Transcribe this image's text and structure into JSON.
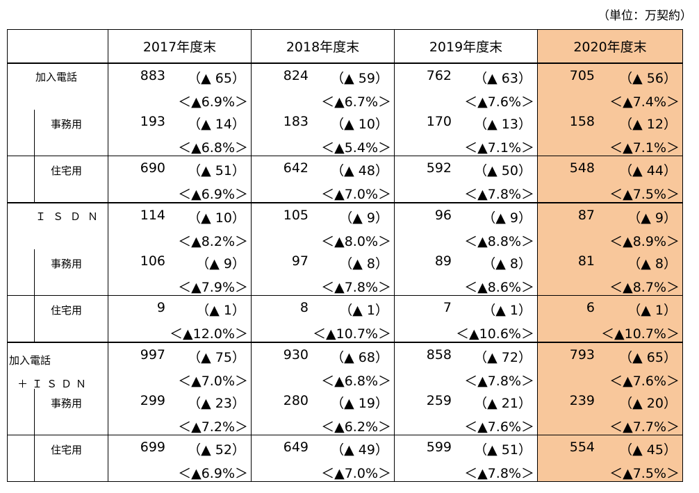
{
  "unit_label": "（単位：万契約）",
  "years": [
    "2017年度末",
    "2018年度末",
    "2019年度末",
    "2020年度末"
  ],
  "highlight_color": "#f8c79b",
  "rows": [
    {
      "label": "加入電話",
      "cells": [
        {
          "num": "883",
          "chg": "（▲ 65）",
          "pct": "＜▲6.9%＞"
        },
        {
          "num": "824",
          "chg": "（▲ 59）",
          "pct": "＜▲6.7%＞"
        },
        {
          "num": "762",
          "chg": "（▲ 63）",
          "pct": "＜▲7.6%＞"
        },
        {
          "num": "705",
          "chg": "（▲ 56）",
          "pct": "＜▲7.4%＞"
        }
      ]
    },
    {
      "label": "事務用",
      "cells": [
        {
          "num": "193",
          "chg": "（▲ 14）",
          "pct": "＜▲6.8%＞"
        },
        {
          "num": "183",
          "chg": "（▲ 10）",
          "pct": "＜▲5.4%＞"
        },
        {
          "num": "170",
          "chg": "（▲ 13）",
          "pct": "＜▲7.1%＞"
        },
        {
          "num": "158",
          "chg": "（▲ 12）",
          "pct": "＜▲7.1%＞"
        }
      ]
    },
    {
      "label": "住宅用",
      "cells": [
        {
          "num": "690",
          "chg": "（▲ 51）",
          "pct": "＜▲6.9%＞"
        },
        {
          "num": "642",
          "chg": "（▲ 48）",
          "pct": "＜▲7.0%＞"
        },
        {
          "num": "592",
          "chg": "（▲ 50）",
          "pct": "＜▲7.8%＞"
        },
        {
          "num": "548",
          "chg": "（▲ 44）",
          "pct": "＜▲7.5%＞"
        }
      ]
    },
    {
      "label": "ＩＳＤＮ",
      "cells": [
        {
          "num": "114",
          "chg": "（▲ 10）",
          "pct": "＜▲8.2%＞"
        },
        {
          "num": "105",
          "chg": "（▲ 9）",
          "pct": "＜▲8.0%＞"
        },
        {
          "num": "96",
          "chg": "（▲ 9）",
          "pct": "＜▲8.8%＞"
        },
        {
          "num": "87",
          "chg": "（▲ 9）",
          "pct": "＜▲8.9%＞"
        }
      ]
    },
    {
      "label": "事務用",
      "cells": [
        {
          "num": "106",
          "chg": "（▲ 9）",
          "pct": "＜▲7.9%＞"
        },
        {
          "num": "97",
          "chg": "（▲ 8）",
          "pct": "＜▲7.8%＞"
        },
        {
          "num": "89",
          "chg": "（▲ 8）",
          "pct": "＜▲8.6%＞"
        },
        {
          "num": "81",
          "chg": "（▲ 8）",
          "pct": "＜▲8.7%＞"
        }
      ]
    },
    {
      "label": "住宅用",
      "cells": [
        {
          "num": "9",
          "chg": "（▲ 1）",
          "pct": "＜▲12.0%＞"
        },
        {
          "num": "8",
          "chg": "（▲ 1）",
          "pct": "＜▲10.7%＞"
        },
        {
          "num": "7",
          "chg": "（▲ 1）",
          "pct": "＜▲10.6%＞"
        },
        {
          "num": "6",
          "chg": "（▲ 1）",
          "pct": "＜▲10.7%＞"
        }
      ]
    },
    {
      "label": "加入電話",
      "label2": "＋ＩＳＤＮ",
      "cells": [
        {
          "num": "997",
          "chg": "（▲ 75）",
          "pct": "＜▲7.0%＞"
        },
        {
          "num": "930",
          "chg": "（▲ 68）",
          "pct": "＜▲6.8%＞"
        },
        {
          "num": "858",
          "chg": "（▲ 72）",
          "pct": "＜▲7.8%＞"
        },
        {
          "num": "793",
          "chg": "（▲ 65）",
          "pct": "＜▲7.6%＞"
        }
      ]
    },
    {
      "label": "事務用",
      "cells": [
        {
          "num": "299",
          "chg": "（▲ 23）",
          "pct": "＜▲7.2%＞"
        },
        {
          "num": "280",
          "chg": "（▲ 19）",
          "pct": "＜▲6.2%＞"
        },
        {
          "num": "259",
          "chg": "（▲ 21）",
          "pct": "＜▲7.6%＞"
        },
        {
          "num": "239",
          "chg": "（▲ 20）",
          "pct": "＜▲7.7%＞"
        }
      ]
    },
    {
      "label": "住宅用",
      "cells": [
        {
          "num": "699",
          "chg": "（▲ 52）",
          "pct": "＜▲6.9%＞"
        },
        {
          "num": "649",
          "chg": "（▲ 49）",
          "pct": "＜▲7.0%＞"
        },
        {
          "num": "599",
          "chg": "（▲ 51）",
          "pct": "＜▲7.8%＞"
        },
        {
          "num": "554",
          "chg": "（▲ 45）",
          "pct": "＜▲7.5%＞"
        }
      ]
    }
  ]
}
